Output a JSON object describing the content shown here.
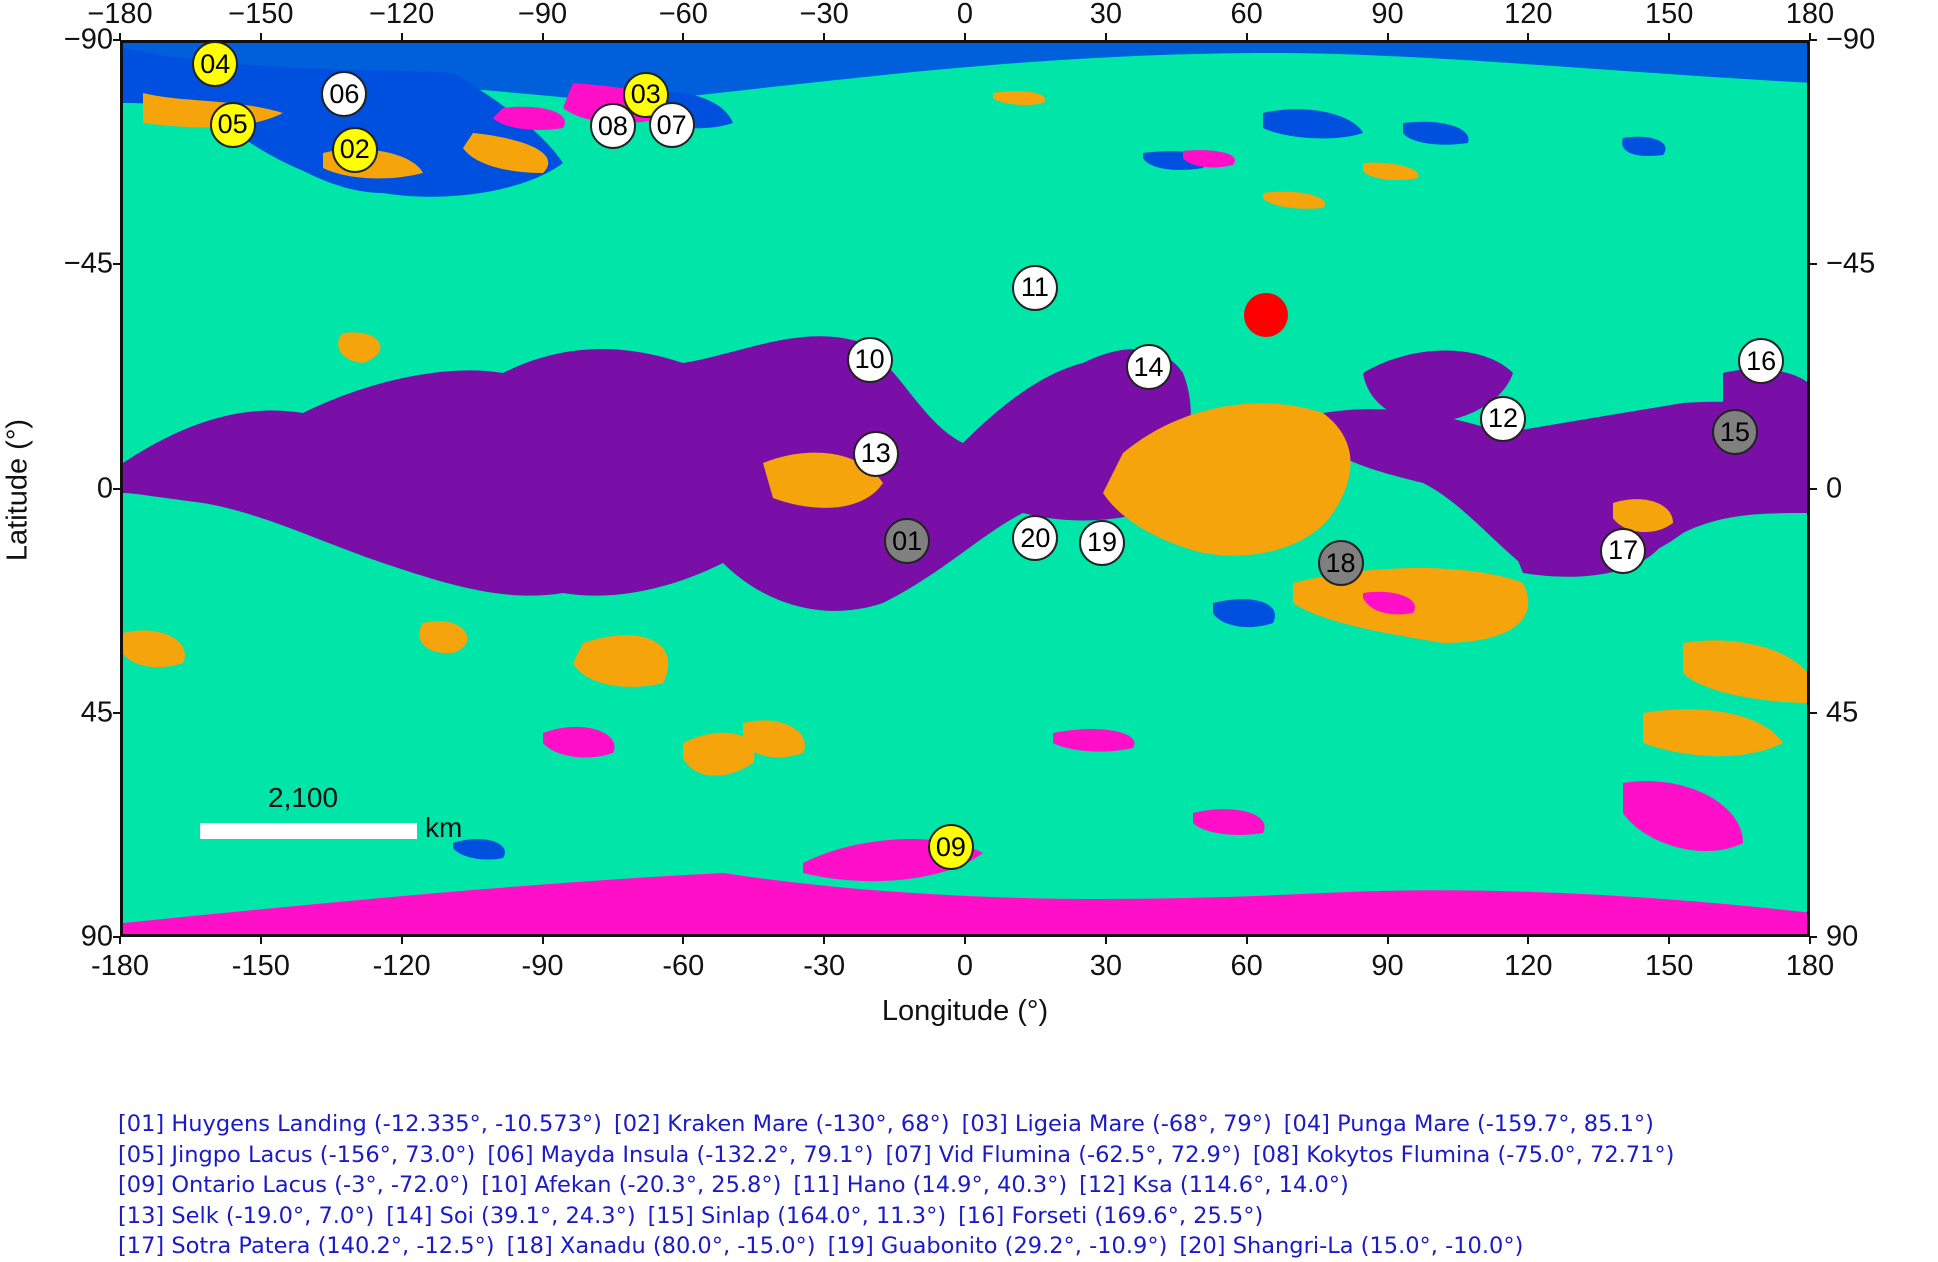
{
  "chart_data": {
    "type": "map",
    "title": "",
    "xlabel": "Longitude (°)",
    "ylabel": "Latitude (°)",
    "xlim": [
      -180,
      180
    ],
    "ylim": [
      -90,
      90
    ],
    "y_axis_inverted": true,
    "x_ticks": [
      "−180",
      "−150",
      "−120",
      "−90",
      "−60",
      "−30",
      "0",
      "30",
      "60",
      "90",
      "120",
      "150",
      "180"
    ],
    "x_ticks_bottom": [
      "-180",
      "-150",
      "-120",
      "-90",
      "-60",
      "-30",
      "0",
      "30",
      "60",
      "90",
      "120",
      "150",
      "180"
    ],
    "y_ticks": [
      "−90",
      "−45",
      "0",
      "45",
      "90"
    ],
    "scale_bar": {
      "value": "2,100",
      "unit": "km"
    },
    "colors": {
      "background_terrain": "#00e5a8",
      "dunes": "#7a0fa8",
      "hummocky": "#f5a40c",
      "labyrinth": "#ff10c8",
      "lakes_seas": "#0050e0",
      "craters": "#ff0000"
    },
    "markers": [
      {
        "id": "01",
        "name": "Huygens Landing",
        "lon": -12.335,
        "lat": -10.573,
        "color": "gray"
      },
      {
        "id": "02",
        "name": "Kraken Mare",
        "lon": -130,
        "lat": 68,
        "color": "yellow"
      },
      {
        "id": "03",
        "name": "Ligeia Mare",
        "lon": -68,
        "lat": 79,
        "color": "yellow"
      },
      {
        "id": "04",
        "name": "Punga Mare",
        "lon": -159.7,
        "lat": 85.1,
        "color": "yellow"
      },
      {
        "id": "05",
        "name": "Jingpo Lacus",
        "lon": -156,
        "lat": 73.0,
        "color": "yellow"
      },
      {
        "id": "06",
        "name": "Mayda Insula",
        "lon": -132.2,
        "lat": 79.1,
        "color": "white"
      },
      {
        "id": "07",
        "name": "Vid Flumina",
        "lon": -62.5,
        "lat": 72.9,
        "color": "white"
      },
      {
        "id": "08",
        "name": "Kokytos Flumina",
        "lon": -75.0,
        "lat": 72.71,
        "color": "white"
      },
      {
        "id": "09",
        "name": "Ontario Lacus",
        "lon": -3,
        "lat": -72.0,
        "color": "yellow"
      },
      {
        "id": "10",
        "name": "Afekan",
        "lon": -20.3,
        "lat": 25.8,
        "color": "white"
      },
      {
        "id": "11",
        "name": "Hano",
        "lon": 14.9,
        "lat": 40.3,
        "color": "white"
      },
      {
        "id": "12",
        "name": "Ksa",
        "lon": 114.6,
        "lat": 14.0,
        "color": "white"
      },
      {
        "id": "13",
        "name": "Selk",
        "lon": -19.0,
        "lat": 7.0,
        "color": "white"
      },
      {
        "id": "14",
        "name": "Soi",
        "lon": 39.1,
        "lat": 24.3,
        "color": "white"
      },
      {
        "id": "15",
        "name": "Sinlap",
        "lon": 164.0,
        "lat": 11.3,
        "color": "gray"
      },
      {
        "id": "16",
        "name": "Forseti",
        "lon": 169.6,
        "lat": 25.5,
        "color": "white"
      },
      {
        "id": "17",
        "name": "Sotra Patera",
        "lon": 140.2,
        "lat": -12.5,
        "color": "white"
      },
      {
        "id": "18",
        "name": "Xanadu",
        "lon": 80.0,
        "lat": -15.0,
        "color": "gray"
      },
      {
        "id": "19",
        "name": "Guabonito",
        "lon": 29.2,
        "lat": -10.9,
        "color": "white"
      },
      {
        "id": "20",
        "name": "Shangri-La",
        "lon": 15.0,
        "lat": -10.0,
        "color": "white"
      }
    ]
  },
  "legend": {
    "lines": [
      [
        "[01] Huygens Landing (-12.335°, -10.573°)",
        "[02] Kraken Mare (-130°, 68°)",
        "[03] Ligeia Mare (-68°, 79°)",
        "[04] Punga Mare (-159.7°, 85.1°)"
      ],
      [
        "[05] Jingpo Lacus (-156°, 73.0°)",
        "[06] Mayda Insula (-132.2°, 79.1°)",
        "[07] Vid Flumina (-62.5°, 72.9°)",
        "[08] Kokytos Flumina (-75.0°, 72.71°)"
      ],
      [
        "[09] Ontario Lacus (-3°, -72.0°)",
        "[10] Afekan (-20.3°, 25.8°)",
        "[11] Hano (14.9°, 40.3°)",
        "[12] Ksa (114.6°, 14.0°)"
      ],
      [
        "[13] Selk (-19.0°, 7.0°)",
        "[14] Soi (39.1°, 24.3°)",
        "[15] Sinlap (164.0°, 11.3°)",
        "[16] Forseti (169.6°, 25.5°)"
      ],
      [
        "[17] Sotra Patera (140.2°, -12.5°)",
        "[18] Xanadu (80.0°, -15.0°)",
        "[19] Guabonito (29.2°, -10.9°)",
        "[20] Shangri-La (15.0°, -10.0°)"
      ]
    ]
  },
  "labels": {
    "xlabel": "Longitude (°)",
    "ylabel": "Latitude (°)",
    "scale_value": "2,100",
    "scale_unit": "km"
  }
}
